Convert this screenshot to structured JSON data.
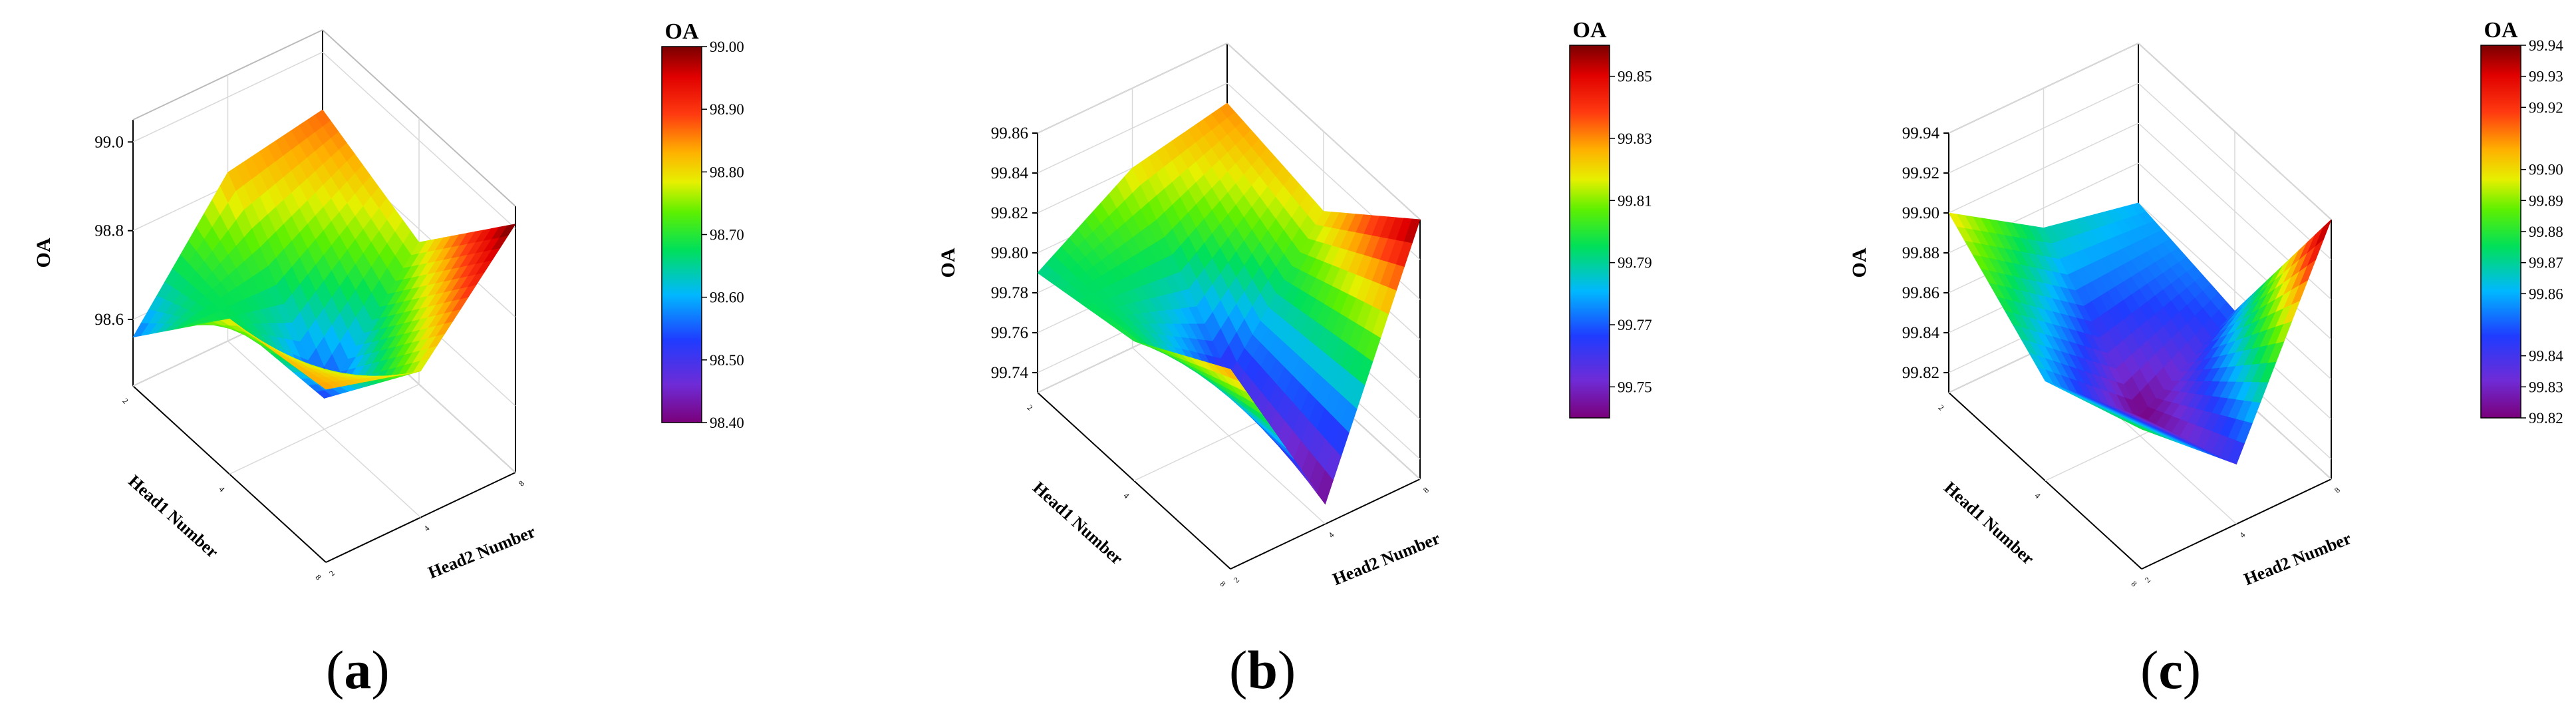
{
  "figure": {
    "panels": [
      {
        "id": "a",
        "label_open": "(",
        "label_letter": "a",
        "label_close": ")"
      },
      {
        "id": "b",
        "label_open": "(",
        "label_letter": "b",
        "label_close": ")"
      },
      {
        "id": "c",
        "label_open": "(",
        "label_letter": "c",
        "label_close": ")"
      }
    ]
  },
  "chart_data": [
    {
      "type": "surface3d",
      "panel": "a",
      "xlabel": "Head1 Number",
      "ylabel": "Head2 Number",
      "zlabel": "OA",
      "x_ticks": [
        "2",
        "4",
        "8"
      ],
      "y_ticks": [
        "2",
        "4",
        "8"
      ],
      "z_ticks": [
        "98.6",
        "98.8",
        "99.0"
      ],
      "zlim": [
        98.45,
        99.05
      ],
      "colorbar": {
        "title": "OA",
        "ticks": [
          "99.00",
          "98.90",
          "98.80",
          "98.70",
          "98.60",
          "98.50",
          "98.40"
        ],
        "range": [
          98.4,
          99.0
        ]
      },
      "grid": [
        [
          98.56,
          98.83,
          98.87
        ],
        [
          98.8,
          98.52,
          98.77
        ],
        [
          98.84,
          98.78,
          99.01
        ]
      ]
    },
    {
      "type": "surface3d",
      "panel": "b",
      "xlabel": "Head1 Number",
      "ylabel": "Head2 Number",
      "zlabel": "OA",
      "x_ticks": [
        "2",
        "4",
        "8"
      ],
      "y_ticks": [
        "2",
        "4",
        "8"
      ],
      "z_ticks": [
        "99.74",
        "99.76",
        "99.78",
        "99.80",
        "99.82",
        "99.84",
        "99.86"
      ],
      "zlim": [
        99.73,
        99.86
      ],
      "colorbar": {
        "title": "OA",
        "ticks": [
          "99.85",
          "99.83",
          "99.81",
          "99.79",
          "99.77",
          "99.75"
        ],
        "range": [
          99.74,
          99.86
        ]
      },
      "grid": [
        [
          99.79,
          99.82,
          99.83
        ],
        [
          99.8,
          99.76,
          99.82
        ],
        [
          99.83,
          99.74,
          99.86
        ]
      ]
    },
    {
      "type": "surface3d",
      "panel": "c",
      "xlabel": "Head1 Number",
      "ylabel": "Head2 Number",
      "zlabel": "OA",
      "x_ticks": [
        "2",
        "4",
        "8"
      ],
      "y_ticks": [
        "2",
        "4",
        "8"
      ],
      "z_ticks": [
        "99.82",
        "99.84",
        "99.86",
        "99.88",
        "99.90",
        "99.92",
        "99.94"
      ],
      "zlim": [
        99.81,
        99.94
      ],
      "colorbar": {
        "title": "OA",
        "ticks": [
          "99.94",
          "99.93",
          "99.92",
          "99.90",
          "99.89",
          "99.88",
          "99.87",
          "99.86",
          "99.84",
          "99.83",
          "99.82"
        ],
        "range": [
          99.82,
          99.94
        ]
      },
      "grid": [
        [
          99.9,
          99.87,
          99.86
        ],
        [
          99.86,
          99.82,
          99.85
        ],
        [
          99.88,
          99.84,
          99.94
        ]
      ]
    }
  ]
}
